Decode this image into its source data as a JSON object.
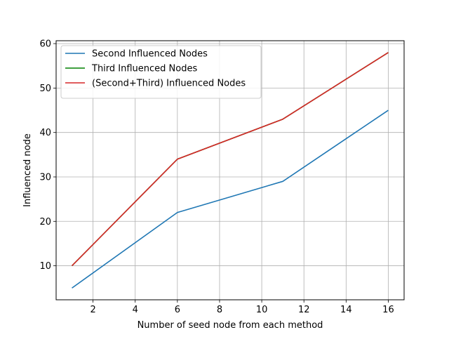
{
  "chart_data": {
    "type": "line",
    "title": "",
    "xlabel": "Number of seed node from each method",
    "ylabel": "Influenced node",
    "xlim": [
      0.25,
      16.75
    ],
    "ylim": [
      2.35,
      60.65
    ],
    "xticks": [
      2,
      4,
      6,
      8,
      10,
      12,
      14,
      16
    ],
    "yticks": [
      10,
      20,
      30,
      40,
      50,
      60
    ],
    "grid": true,
    "legend_position": "top-left",
    "series": [
      {
        "name": "Second Influenced Nodes",
        "color": "#1f77b4",
        "x": [
          1,
          6,
          11,
          16
        ],
        "y": [
          5,
          22,
          29,
          45
        ]
      },
      {
        "name": "Third Influenced Nodes",
        "color": "#008000",
        "x": [
          1,
          6,
          11,
          16
        ],
        "y": [
          10,
          34,
          43,
          58
        ]
      },
      {
        "name": "(Second+Third) Influenced Nodes",
        "color": "#d62728",
        "x": [
          1,
          6,
          11,
          16
        ],
        "y": [
          10,
          34,
          43,
          58
        ]
      }
    ]
  }
}
